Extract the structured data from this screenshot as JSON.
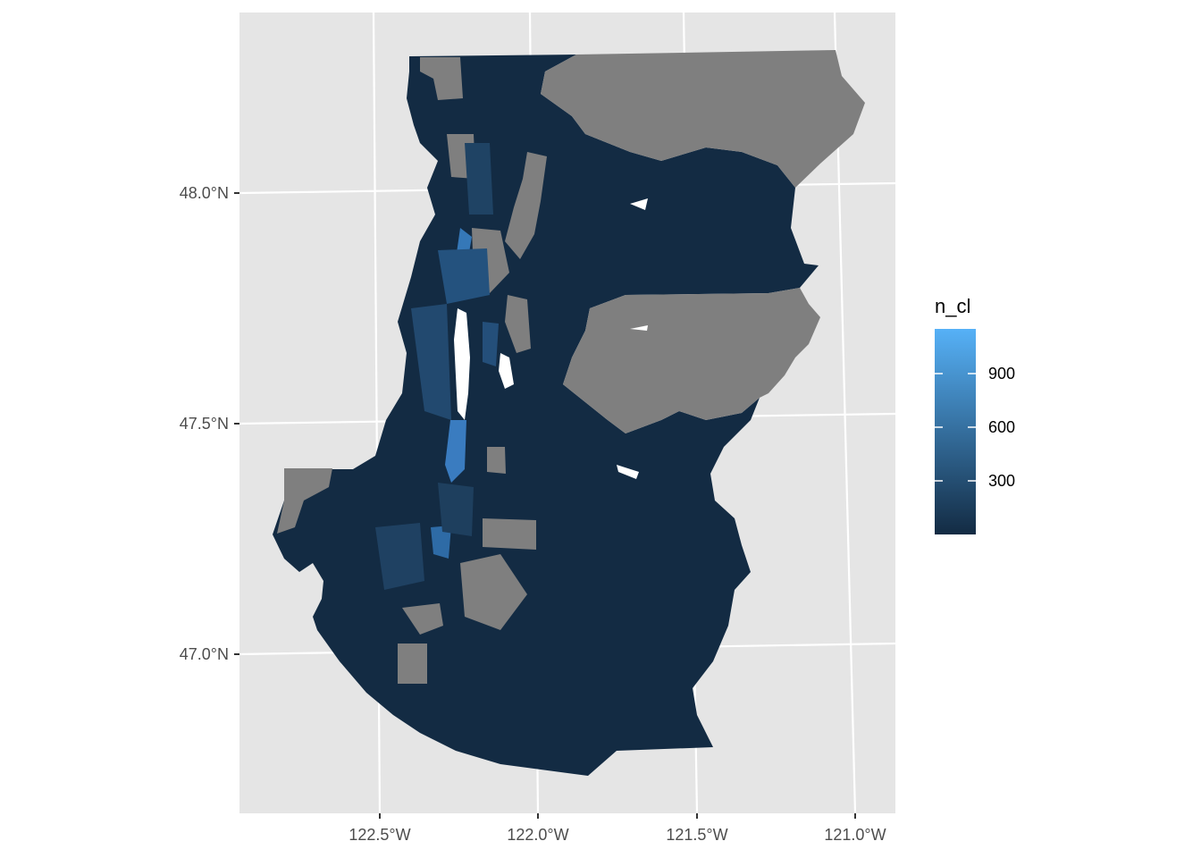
{
  "chart_data": {
    "type": "choropleth",
    "title": "",
    "xlabel": "",
    "ylabel": "",
    "x_ticks": [
      "122.5°W",
      "122.0°W",
      "121.5°W",
      "121.0°W"
    ],
    "y_ticks": [
      "48.0°N",
      "47.5°N",
      "47.0°N"
    ],
    "legend": {
      "title": "n_cl",
      "ticks": [
        300,
        600,
        900
      ],
      "tick_labels": [
        "300",
        "600",
        "900"
      ],
      "min": 0,
      "max": 1150,
      "color_low": "#132B43",
      "color_high": "#56B1F7",
      "na_color": "#7F7F7F",
      "placement": "right"
    },
    "panel_background": "#E5E5E5",
    "grid": true
  }
}
